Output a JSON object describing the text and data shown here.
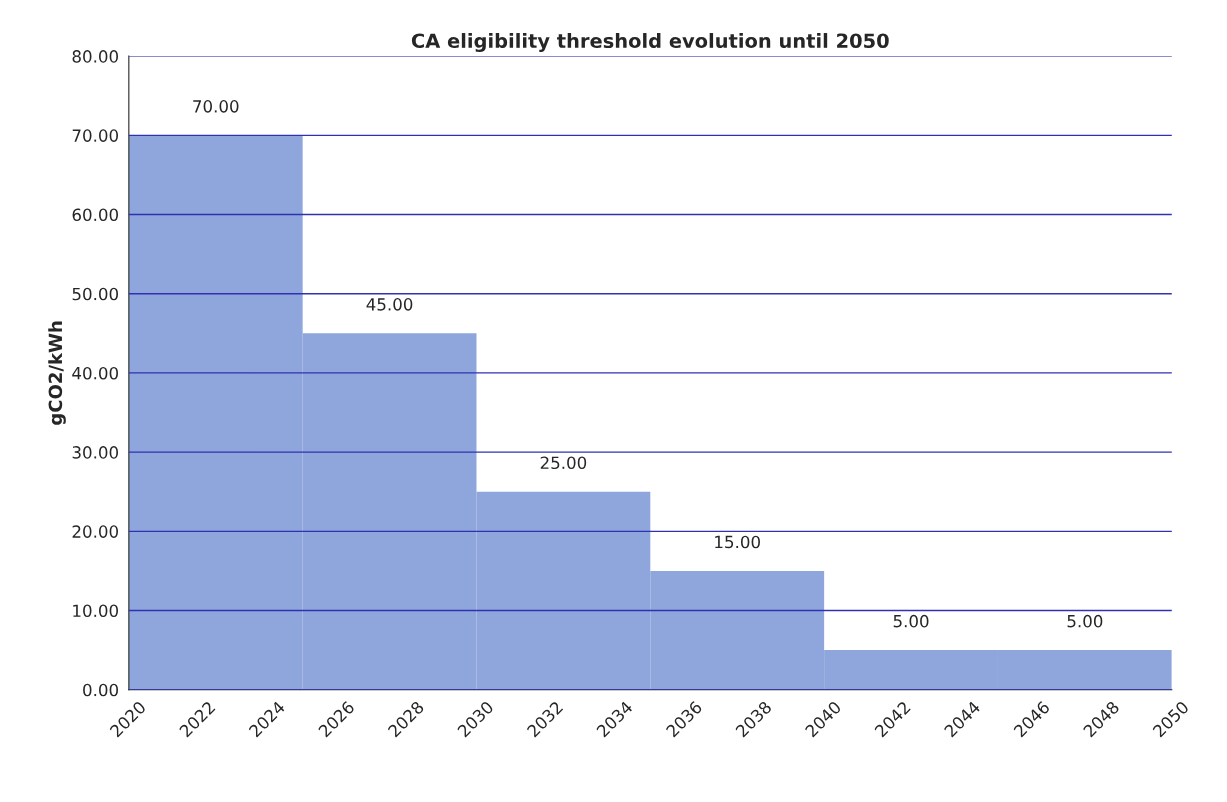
{
  "chart_data": {
    "type": "bar",
    "title": "CA eligibility threshold evolution until 2050",
    "ylabel": "gCO2/kWh",
    "x": [
      2022.5,
      2027.5,
      2032.5,
      2037.5,
      2042.5,
      2047.5
    ],
    "series": [
      {
        "color": "#8ea6dc",
        "values": [
          70,
          45,
          25,
          15,
          5,
          5
        ],
        "value_labels": [
          "70.00",
          "45.00",
          "25.00",
          "15.00",
          "5.00",
          "5.00"
        ]
      }
    ],
    "xlim": [
      2020,
      2050
    ],
    "xticks": [
      2020,
      2022,
      2024,
      2026,
      2028,
      2030,
      2032,
      2034,
      2036,
      2038,
      2040,
      2042,
      2044,
      2046,
      2048,
      2050
    ],
    "ylim": [
      0,
      80
    ],
    "yticks": [
      {
        "value": 0,
        "label": "0.00"
      },
      {
        "value": 10,
        "label": "10.00"
      },
      {
        "value": 20,
        "label": "20.00"
      },
      {
        "value": 30,
        "label": "30.00"
      },
      {
        "value": 40,
        "label": "40.00"
      },
      {
        "value": 50,
        "label": "50.00"
      },
      {
        "value": 60,
        "label": "60.00"
      },
      {
        "value": 70,
        "label": "70.00"
      },
      {
        "value": 80,
        "label": "80.00"
      }
    ],
    "grid": "y"
  }
}
